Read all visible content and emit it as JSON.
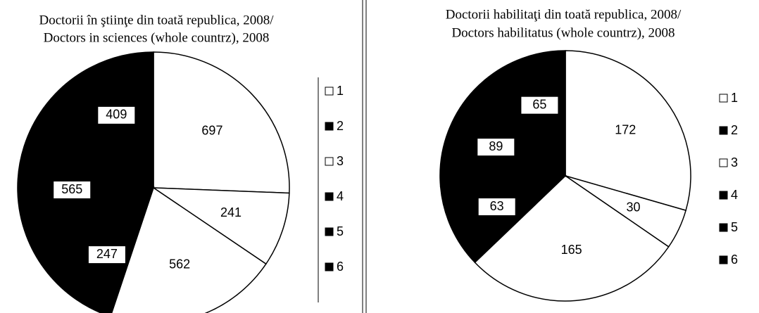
{
  "chart_data": [
    {
      "type": "pie",
      "title": "Doctorii în ştiinţe din toată republica, 2008/",
      "subtitle": "Doctors in sciences (whole countrz), 2008",
      "values": [
        697,
        241,
        562,
        247,
        565,
        409
      ],
      "colors": [
        "#ffffff",
        "#ffffff",
        "#ffffff",
        "#000000",
        "#000000",
        "#000000"
      ],
      "legend": [
        {
          "label": "1",
          "color": "#ffffff"
        },
        {
          "label": "2",
          "color": "#000000"
        },
        {
          "label": "3",
          "color": "#ffffff"
        },
        {
          "label": "4",
          "color": "#000000"
        },
        {
          "label": "5",
          "color": "#000000"
        },
        {
          "label": "6",
          "color": "#000000"
        }
      ]
    },
    {
      "type": "pie",
      "title": "Doctorii habilitaţi din toată republica, 2008/",
      "subtitle": "Doctors habilitatus  (whole countrz), 2008",
      "values": [
        172,
        30,
        165,
        63,
        89,
        65
      ],
      "colors": [
        "#ffffff",
        "#ffffff",
        "#ffffff",
        "#000000",
        "#000000",
        "#000000"
      ],
      "legend": [
        {
          "label": "1",
          "color": "#ffffff"
        },
        {
          "label": "2",
          "color": "#000000"
        },
        {
          "label": "3",
          "color": "#ffffff"
        },
        {
          "label": "4",
          "color": "#000000"
        },
        {
          "label": "5",
          "color": "#000000"
        },
        {
          "label": "6",
          "color": "#000000"
        }
      ]
    }
  ]
}
